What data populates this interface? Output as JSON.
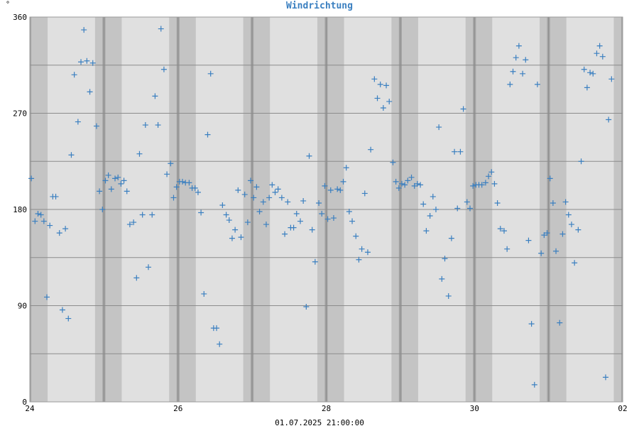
{
  "chart_data": {
    "type": "scatter",
    "title": "Windrichtung",
    "ylabel": "°",
    "footer": "01.07.2025 21:00:00",
    "ylim": [
      0,
      360
    ],
    "xlim_days": [
      0,
      8
    ],
    "yticks": [
      0,
      90,
      180,
      270,
      360
    ],
    "xticks": [
      {
        "value": 0,
        "label": "24"
      },
      {
        "value": 2,
        "label": "26"
      },
      {
        "value": 4,
        "label": "28"
      },
      {
        "value": 6,
        "label": "30"
      },
      {
        "value": 8,
        "label": "02"
      }
    ],
    "marker": "+",
    "colors": {
      "point": "#3a7fc0",
      "plot_bg": "#e0e0e0",
      "night_band": "#c4c4c4",
      "midnight_band": "#a4a4a4",
      "grid": "#8c8c8c",
      "title": "#3a7fc0"
    },
    "points": [
      [
        0.02,
        209
      ],
      [
        0.07,
        169
      ],
      [
        0.11,
        176
      ],
      [
        0.15,
        175
      ],
      [
        0.19,
        169
      ],
      [
        0.23,
        98
      ],
      [
        0.27,
        165
      ],
      [
        0.31,
        192
      ],
      [
        0.35,
        192
      ],
      [
        0.4,
        158
      ],
      [
        0.44,
        86
      ],
      [
        0.48,
        162
      ],
      [
        0.52,
        78
      ],
      [
        0.56,
        231
      ],
      [
        0.6,
        306
      ],
      [
        0.65,
        262
      ],
      [
        0.69,
        318
      ],
      [
        0.73,
        348
      ],
      [
        0.77,
        319
      ],
      [
        0.81,
        290
      ],
      [
        0.85,
        317
      ],
      [
        0.9,
        258
      ],
      [
        0.94,
        197
      ],
      [
        0.98,
        180
      ],
      [
        1.02,
        207
      ],
      [
        1.06,
        212
      ],
      [
        1.1,
        199
      ],
      [
        1.15,
        209
      ],
      [
        1.19,
        210
      ],
      [
        1.23,
        204
      ],
      [
        1.27,
        207
      ],
      [
        1.31,
        197
      ],
      [
        1.35,
        166
      ],
      [
        1.4,
        168
      ],
      [
        1.44,
        116
      ],
      [
        1.48,
        232
      ],
      [
        1.52,
        175
      ],
      [
        1.56,
        259
      ],
      [
        1.6,
        126
      ],
      [
        1.65,
        175
      ],
      [
        1.69,
        286
      ],
      [
        1.73,
        259
      ],
      [
        1.77,
        349
      ],
      [
        1.81,
        311
      ],
      [
        1.85,
        213
      ],
      [
        1.9,
        223
      ],
      [
        1.94,
        191
      ],
      [
        1.98,
        201
      ],
      [
        2.02,
        206
      ],
      [
        2.06,
        206
      ],
      [
        2.1,
        205
      ],
      [
        2.15,
        205
      ],
      [
        2.19,
        200
      ],
      [
        2.23,
        200
      ],
      [
        2.27,
        196
      ],
      [
        2.31,
        177
      ],
      [
        2.35,
        101
      ],
      [
        2.4,
        250
      ],
      [
        2.44,
        307
      ],
      [
        2.48,
        69
      ],
      [
        2.52,
        69
      ],
      [
        2.56,
        54
      ],
      [
        2.6,
        184
      ],
      [
        2.65,
        175
      ],
      [
        2.69,
        170
      ],
      [
        2.73,
        153
      ],
      [
        2.77,
        161
      ],
      [
        2.81,
        198
      ],
      [
        2.85,
        154
      ],
      [
        2.9,
        194
      ],
      [
        2.94,
        168
      ],
      [
        2.98,
        207
      ],
      [
        3.02,
        191
      ],
      [
        3.06,
        201
      ],
      [
        3.1,
        178
      ],
      [
        3.15,
        187
      ],
      [
        3.19,
        166
      ],
      [
        3.23,
        191
      ],
      [
        3.27,
        203
      ],
      [
        3.31,
        196
      ],
      [
        3.35,
        199
      ],
      [
        3.4,
        191
      ],
      [
        3.44,
        157
      ],
      [
        3.48,
        187
      ],
      [
        3.52,
        163
      ],
      [
        3.56,
        163
      ],
      [
        3.6,
        176
      ],
      [
        3.65,
        169
      ],
      [
        3.69,
        188
      ],
      [
        3.73,
        89
      ],
      [
        3.77,
        230
      ],
      [
        3.81,
        161
      ],
      [
        3.85,
        131
      ],
      [
        3.9,
        186
      ],
      [
        3.94,
        176
      ],
      [
        3.98,
        202
      ],
      [
        4.02,
        171
      ],
      [
        4.06,
        198
      ],
      [
        4.1,
        172
      ],
      [
        4.15,
        199
      ],
      [
        4.19,
        198
      ],
      [
        4.23,
        206
      ],
      [
        4.27,
        219
      ],
      [
        4.31,
        178
      ],
      [
        4.35,
        169
      ],
      [
        4.4,
        155
      ],
      [
        4.44,
        133
      ],
      [
        4.48,
        143
      ],
      [
        4.52,
        195
      ],
      [
        4.56,
        140
      ],
      [
        4.6,
        236
      ],
      [
        4.65,
        302
      ],
      [
        4.69,
        284
      ],
      [
        4.73,
        297
      ],
      [
        4.77,
        275
      ],
      [
        4.81,
        296
      ],
      [
        4.85,
        281
      ],
      [
        4.9,
        224
      ],
      [
        4.94,
        206
      ],
      [
        4.98,
        200
      ],
      [
        5.02,
        204
      ],
      [
        5.06,
        203
      ],
      [
        5.1,
        207
      ],
      [
        5.15,
        210
      ],
      [
        5.19,
        202
      ],
      [
        5.23,
        204
      ],
      [
        5.27,
        203
      ],
      [
        5.31,
        185
      ],
      [
        5.35,
        160
      ],
      [
        5.4,
        174
      ],
      [
        5.44,
        192
      ],
      [
        5.48,
        180
      ],
      [
        5.52,
        257
      ],
      [
        5.56,
        115
      ],
      [
        5.6,
        134
      ],
      [
        5.65,
        99
      ],
      [
        5.69,
        153
      ],
      [
        5.73,
        234
      ],
      [
        5.77,
        181
      ],
      [
        5.81,
        234
      ],
      [
        5.85,
        274
      ],
      [
        5.9,
        187
      ],
      [
        5.94,
        181
      ],
      [
        5.98,
        202
      ],
      [
        6.02,
        203
      ],
      [
        6.06,
        203
      ],
      [
        6.1,
        203
      ],
      [
        6.15,
        205
      ],
      [
        6.19,
        211
      ],
      [
        6.23,
        215
      ],
      [
        6.27,
        204
      ],
      [
        6.31,
        186
      ],
      [
        6.35,
        162
      ],
      [
        6.4,
        160
      ],
      [
        6.44,
        143
      ],
      [
        6.48,
        297
      ],
      [
        6.52,
        309
      ],
      [
        6.56,
        322
      ],
      [
        6.6,
        333
      ],
      [
        6.65,
        307
      ],
      [
        6.69,
        320
      ],
      [
        6.73,
        151
      ],
      [
        6.77,
        73
      ],
      [
        6.81,
        16
      ],
      [
        6.85,
        297
      ],
      [
        6.9,
        139
      ],
      [
        6.94,
        156
      ],
      [
        6.98,
        158
      ],
      [
        7.02,
        209
      ],
      [
        7.06,
        186
      ],
      [
        7.1,
        141
      ],
      [
        7.15,
        74
      ],
      [
        7.19,
        157
      ],
      [
        7.23,
        187
      ],
      [
        7.27,
        175
      ],
      [
        7.31,
        166
      ],
      [
        7.35,
        130
      ],
      [
        7.4,
        161
      ],
      [
        7.44,
        225
      ],
      [
        7.48,
        311
      ],
      [
        7.52,
        294
      ],
      [
        7.56,
        308
      ],
      [
        7.6,
        307
      ],
      [
        7.65,
        326
      ],
      [
        7.69,
        333
      ],
      [
        7.73,
        323
      ],
      [
        7.77,
        23
      ],
      [
        7.81,
        264
      ],
      [
        7.85,
        302
      ]
    ]
  }
}
